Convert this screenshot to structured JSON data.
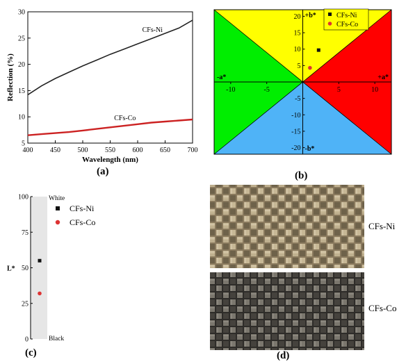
{
  "chart_data": [
    {
      "panel": "(a)",
      "type": "line",
      "xlabel": "Wavelength (nm)",
      "ylabel": "Reflection (%)",
      "xlim": [
        400,
        700
      ],
      "ylim": [
        5,
        30
      ],
      "xticks": [
        400,
        450,
        500,
        550,
        600,
        650,
        700
      ],
      "yticks": [
        5,
        10,
        15,
        20,
        25,
        30
      ],
      "series": [
        {
          "name": "CFs-Ni",
          "color": "#222222",
          "x": [
            400,
            425,
            450,
            475,
            500,
            525,
            550,
            575,
            600,
            625,
            650,
            675,
            700
          ],
          "y": [
            14.2,
            15.9,
            17.3,
            18.5,
            19.7,
            20.8,
            21.9,
            22.9,
            23.9,
            24.9,
            25.9,
            26.9,
            28.4
          ]
        },
        {
          "name": "CFs-Co",
          "color": "#cc2222",
          "x": [
            400,
            425,
            450,
            475,
            500,
            525,
            550,
            575,
            600,
            625,
            650,
            675,
            700
          ],
          "y": [
            6.5,
            6.7,
            6.9,
            7.1,
            7.4,
            7.7,
            8.0,
            8.3,
            8.6,
            8.9,
            9.1,
            9.3,
            9.5
          ]
        }
      ]
    },
    {
      "panel": "(b)",
      "type": "scatter",
      "xlabel_pos": "+a*",
      "xlabel_neg": "-a*",
      "ylabel_pos": "+b*",
      "ylabel_neg": "-b*",
      "xlim": [
        -12.3,
        12.3
      ],
      "ylim": [
        -22,
        22
      ],
      "xticks": [
        -10,
        -5,
        0,
        5,
        10
      ],
      "yticks": [
        -20,
        -15,
        -10,
        -5,
        0,
        5,
        10,
        15,
        20
      ],
      "quadrant_colors": {
        "top": "#ffff00",
        "right": "#ff0000",
        "bottom": "#4fb3f7",
        "left": "#00ee00"
      },
      "legend_position": "top-right",
      "series": [
        {
          "name": "CFs-Ni",
          "marker": "square",
          "color": "#111111",
          "points": [
            [
              2.2,
              9.7
            ]
          ]
        },
        {
          "name": "CFs-Co",
          "marker": "circle",
          "color": "#dd3333",
          "points": [
            [
              1.0,
              4.3
            ]
          ]
        }
      ]
    },
    {
      "panel": "(c)",
      "type": "scatter",
      "ylabel": "L*",
      "ylim": [
        0,
        100
      ],
      "yticks": [
        0,
        25,
        50,
        75,
        100
      ],
      "top_label": "White",
      "bottom_label": "Black",
      "legend_position": "top-right",
      "series": [
        {
          "name": "CFs-Ni",
          "marker": "square",
          "color": "#111111",
          "value": 55
        },
        {
          "name": "CFs-Co",
          "marker": "circle",
          "color": "#dd3333",
          "value": 32
        }
      ]
    }
  ],
  "photos": {
    "label": "(d)",
    "items": [
      {
        "name": "CFs-Ni"
      },
      {
        "name": "CFs-Co"
      }
    ]
  }
}
